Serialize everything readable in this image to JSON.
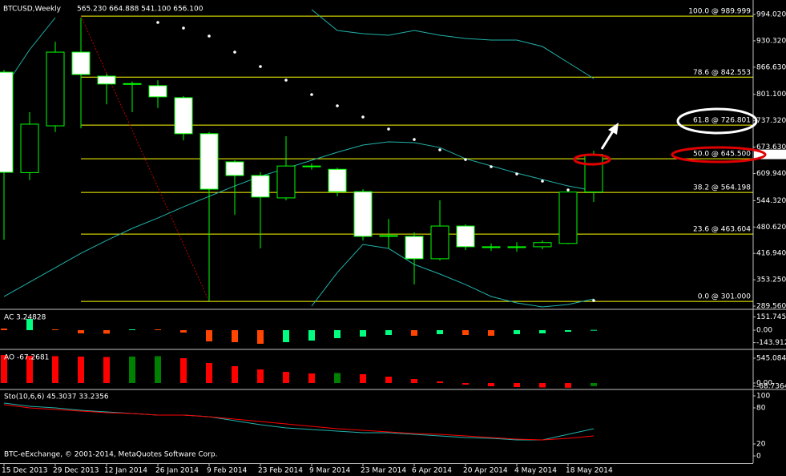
{
  "chart_data": [
    {
      "type": "candlestick",
      "title": "BTCUSD,Weekly",
      "subtitle": "565.230 664.888 541.100 656.100",
      "categories": [
        "15 Dec 2013",
        null,
        "29 Dec 2013",
        null,
        "12 Jan 2014",
        null,
        "26 Jan 2014",
        null,
        "9 Feb 2014",
        null,
        "23 Feb 2014",
        null,
        "9 Mar 2014",
        null,
        "23 Mar 2014",
        null,
        "6 Apr 2014",
        null,
        "20 Apr 2014",
        null,
        "4 May 2014",
        null,
        "18 May 2014",
        null
      ],
      "open": [
        854.6,
        612.0,
        725.0,
        903.0,
        845.0,
        826.0,
        822.0,
        793.0,
        706.0,
        638.0,
        605.0,
        551.0,
        628.0,
        620.0,
        566.0,
        458.0,
        458.0,
        404.0,
        483.0,
        433.0,
        431.0,
        433.0,
        441.0,
        565.23
      ],
      "high": [
        860.0,
        758.0,
        928.0,
        986.0,
        851.0,
        832.0,
        835.0,
        797.0,
        710.0,
        642.0,
        613.0,
        700.0,
        634.0,
        624.0,
        572.0,
        500.0,
        468.0,
        545.0,
        487.0,
        441.0,
        444.0,
        448.0,
        572.0,
        664.888
      ],
      "low": [
        450.0,
        594.0,
        710.0,
        719.0,
        777.0,
        758.0,
        768.0,
        690.0,
        301.0,
        510.0,
        429.0,
        545.0,
        619.0,
        555.0,
        448.0,
        429.0,
        342.0,
        400.0,
        425.0,
        423.0,
        421.0,
        427.0,
        439.0,
        541.1
      ],
      "close": [
        612.8,
        729.0,
        903.0,
        849.0,
        826.0,
        827.0,
        795.0,
        706.0,
        572.0,
        605.0,
        553.0,
        628.0,
        627.0,
        566.0,
        458.0,
        460.0,
        404.0,
        483.0,
        433.0,
        431.0,
        433.0,
        443.0,
        565.0,
        656.1
      ],
      "colors": {
        "up": "#000000",
        "down": "#ffffff",
        "outline": "#00ff00"
      },
      "last_price_label": "656.100",
      "sar": {
        "color": "#ffffff",
        "values": [
          null,
          null,
          null,
          null,
          null,
          null,
          974.7,
          961.1,
          941.8,
          903.1,
          868.2,
          835.3,
          800.5,
          773.4,
          746.3,
          717.3,
          692.1,
          667.0,
          643.7,
          626.3,
          608.9,
          591.5,
          570.2,
          303.1
        ]
      },
      "bands": {
        "color": "#20b2aa",
        "upper": [
          816.0,
          908.9,
          986.3,
          null,
          null,
          null,
          null,
          null,
          null,
          null,
          null,
          null,
          1005.6,
          955.3,
          947.6,
          943.7,
          955.3,
          943.7,
          935.9,
          932.1,
          932.1,
          916.6,
          877.9,
          839.2
        ],
        "middle": [
          312.8,
          347.6,
          382.4,
          417.3,
          448.2,
          477.3,
          502.4,
          529.5,
          554.7,
          579.8,
          603.1,
          622.4,
          641.8,
          661.1,
          678.5,
          686.3,
          684.4,
          672.7,
          645.6,
          628.2,
          610.8,
          595.3,
          579.8,
          568.2
        ],
        "lower": [
          null,
          null,
          null,
          null,
          null,
          null,
          null,
          null,
          null,
          null,
          null,
          null,
          289.5,
          370.8,
          438.6,
          428.9,
          390.2,
          367.0,
          341.8,
          312.8,
          297.3,
          287.6,
          293.4,
          307.0
        ]
      },
      "fibonacci": {
        "color": "#ffff00",
        "levels": [
          {
            "value": 989.999,
            "label": "100.0 @ 989.999"
          },
          {
            "value": 842.553,
            "label": "78.6 @ 842.553"
          },
          {
            "value": 726.801,
            "label": "61.8 @ 726.801"
          },
          {
            "value": 645.5,
            "label": "50.0 @ 645.500"
          },
          {
            "value": 564.198,
            "label": "38.2 @ 564.198"
          },
          {
            "value": 463.604,
            "label": "23.6 @ 463.604"
          },
          {
            "value": 301.0,
            "label": "0.0 @ 301.000"
          }
        ]
      },
      "ylim": [
        283.8,
        1019.2
      ],
      "yticks": [
        {
          "value": 994.02,
          "label": "994.020"
        },
        {
          "value": 930.32,
          "label": "930.320"
        },
        {
          "value": 866.63,
          "label": "866.630"
        },
        {
          "value": 801.1,
          "label": "801.100"
        },
        {
          "value": 737.32,
          "label": "737.320"
        },
        {
          "value": 673.63,
          "label": "673.630"
        },
        {
          "value": 609.94,
          "label": "609.940"
        },
        {
          "value": 544.32,
          "label": "544.320"
        },
        {
          "value": 480.62,
          "label": "480.620"
        },
        {
          "value": 416.94,
          "label": "416.940"
        },
        {
          "value": 353.25,
          "label": "353.250"
        },
        {
          "value": 289.56,
          "label": "289.560"
        }
      ]
    },
    {
      "type": "bar",
      "title": "AC 3.24828",
      "values": [
        18.5,
        129.4,
        9.2,
        -37.0,
        -40.1,
        9.2,
        9.2,
        -27.7,
        -129.4,
        -138.6,
        -157.1,
        -138.6,
        -120.1,
        -92.4,
        -73.9,
        -55.4,
        -64.7,
        -46.2,
        -55.4,
        -64.7,
        -46.2,
        -37.0,
        -18.5,
        3.24828
      ],
      "colors": {
        "up": "#00ff7f",
        "down": "#ff4500"
      },
      "ylim": [
        -212.5,
        221.8
      ],
      "yticks": [
        151.7459,
        {
          "value": 0,
          "label": "0.00"
        },
        -143.9121
      ]
    },
    {
      "type": "bar",
      "title": "AO -67.2681",
      "values": [
        615.3,
        597.7,
        588.9,
        580.1,
        571.4,
        580.1,
        588.9,
        545.0,
        439.5,
        369.2,
        298.9,
        246.1,
        211.0,
        219.8,
        193.4,
        140.6,
        87.9,
        35.2,
        -35.2,
        -70.3,
        -87.9,
        -96.7,
        -102.0,
        -67.2681
      ],
      "colors": {
        "up": "#008000",
        "down": "#ff0000"
      },
      "ylim": [
        -123.1,
        720.8
      ],
      "yticks": [
        545.0843,
        {
          "value": 0,
          "label": "0.00"
        },
        -68.7364
      ]
    },
    {
      "type": "line",
      "title": "Sto(10,6,6) 45.3037 33.2356",
      "series": [
        {
          "color": "#20b2aa",
          "values": [
            88.0,
            82.7,
            80.0,
            76.0,
            73.3,
            70.7,
            68.0,
            68.0,
            65.3,
            58.7,
            52.0,
            46.7,
            44.0,
            41.3,
            38.7,
            38.7,
            36.0,
            33.3,
            30.7,
            29.3,
            26.7,
            26.7,
            36.0,
            45.3037
          ]
        },
        {
          "color": "#ff0000",
          "values": [
            85.3,
            80.0,
            77.3,
            74.7,
            72.0,
            70.7,
            68.0,
            68.0,
            65.3,
            61.3,
            57.3,
            53.3,
            49.3,
            45.3,
            42.7,
            40.0,
            37.3,
            36.0,
            33.3,
            30.7,
            28.0,
            26.7,
            29.3,
            33.2356
          ]
        }
      ],
      "ylim": [
        -12,
        109.3
      ],
      "yticks": [
        100,
        80,
        20,
        0
      ]
    }
  ],
  "footer": "BTC-eExchange, © 2001-2014, MetaQuotes Software Corp."
}
